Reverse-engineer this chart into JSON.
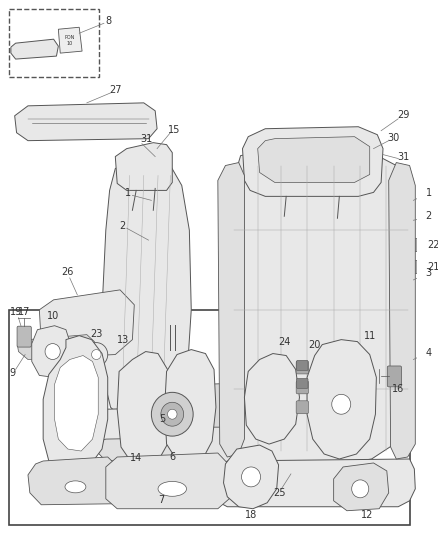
{
  "bg_color": "#ffffff",
  "line_color": "#555555",
  "label_color": "#444444",
  "fig_width": 4.38,
  "fig_height": 5.33,
  "dpi": 100,
  "line_width": 0.7,
  "fill_color": "#f0f0f0",
  "fill_light": "#e8e8e8",
  "fill_dark": "#d8d8d8"
}
